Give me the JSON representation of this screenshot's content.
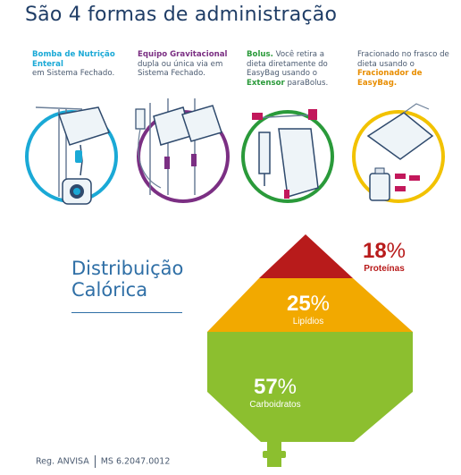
{
  "header": {
    "title": "São 4 formas de administração"
  },
  "methods": [
    {
      "strong": "Bomba de Nutrição Enteral",
      "rest": "em Sistema Fechado.",
      "color": "#1aa9d6"
    },
    {
      "strong": "Equipo Gravitacional",
      "rest": "dupla ou única via em Sistema Fechado.",
      "color": "#7b2f83"
    },
    {
      "strong": "Bolus.",
      "rest1": "Você retira a dieta diretamente do EasyBag usando o",
      "strong2": "Extensor",
      "rest2": "paraBolus.",
      "color": "#2a9a3a"
    },
    {
      "rest1": "Fracionado no frasco de dieta usando o",
      "strong": "Fracionador de EasyBag.",
      "color": "#f2c200"
    }
  ],
  "distribution": {
    "title_line1": "Distribuição",
    "title_line2": "Calórica",
    "segments": [
      {
        "value": "18",
        "unit": "%",
        "label": "Proteínas",
        "color": "#b81b1b"
      },
      {
        "value": "25",
        "unit": "%",
        "label": "Lipídios",
        "color": "#f2a900"
      },
      {
        "value": "57",
        "unit": "%",
        "label": "Carboidratos",
        "color": "#8cbf2f"
      }
    ]
  },
  "footer": {
    "reg_label": "Reg. ANVISA",
    "reg_number": "MS 6.2047.0012"
  }
}
